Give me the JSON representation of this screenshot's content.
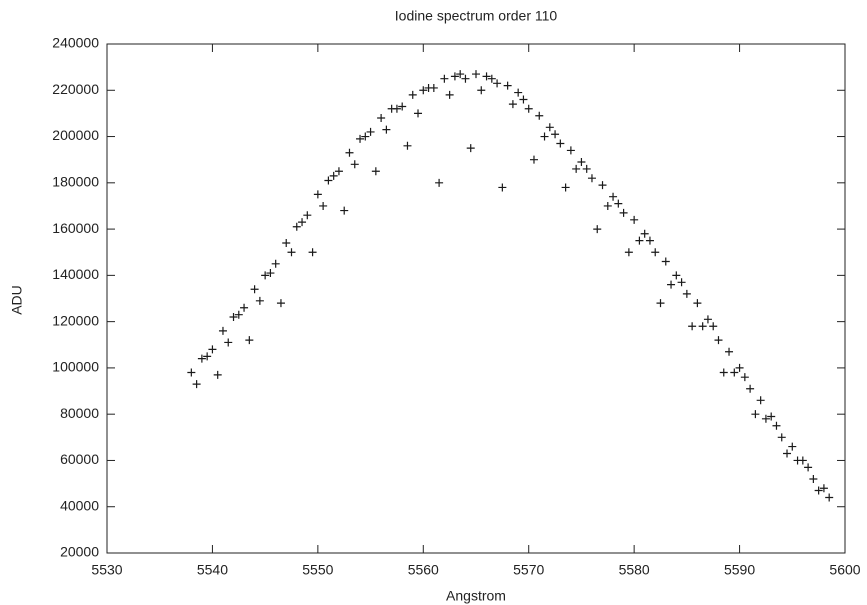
{
  "chart_data": {
    "type": "scatter",
    "title": "Iodine spectrum order 110",
    "x_label": "Angstrom",
    "y_label": "ADU",
    "marker": "+",
    "color": "#1a1a1a",
    "xlim": [
      5530,
      5600
    ],
    "xticks": [
      5530,
      5540,
      5550,
      5560,
      5570,
      5580,
      5590,
      5600
    ],
    "ylim": [
      20000,
      240000
    ],
    "yticks": [
      20000,
      40000,
      60000,
      80000,
      100000,
      120000,
      140000,
      160000,
      180000,
      200000,
      220000,
      240000
    ],
    "x": [
      5538,
      5538.5,
      5539,
      5539.5,
      5540,
      5540.5,
      5541,
      5541.5,
      5542,
      5542.5,
      5543,
      5543.5,
      5544,
      5544.5,
      5545,
      5545.5,
      5546,
      5546.5,
      5547,
      5547.5,
      5548,
      5548.5,
      5549,
      5549.5,
      5550,
      5550.5,
      5551,
      5551.5,
      5552,
      5552.5,
      5553,
      5553.5,
      5554,
      5554.5,
      5555,
      5555.5,
      5556,
      5556.5,
      5557,
      5557.5,
      5558,
      5558.5,
      5559,
      5559.5,
      5560,
      5560.5,
      5561,
      5561.5,
      5562,
      5562.5,
      5563,
      5563.5,
      5564,
      5564.5,
      5565,
      5565.5,
      5566,
      5566.5,
      5567,
      5567.5,
      5568,
      5568.5,
      5569,
      5569.5,
      5570,
      5570.5,
      5571,
      5571.5,
      5572,
      5572.5,
      5573,
      5573.5,
      5574,
      5574.5,
      5575,
      5575.5,
      5576,
      5576.5,
      5577,
      5577.5,
      5578,
      5578.5,
      5579,
      5579.5,
      5580,
      5580.5,
      5581,
      5581.5,
      5582,
      5582.5,
      5583,
      5583.5,
      5584,
      5584.5,
      5585,
      5585.5,
      5586,
      5586.5,
      5587,
      5587.5,
      5588,
      5588.5,
      5589,
      5589.5,
      5590,
      5590.5,
      5591,
      5591.5,
      5592,
      5592.5,
      5593,
      5593.5,
      5594,
      5594.5,
      5595,
      5595.5,
      5596,
      5596.5,
      5597,
      5597.5,
      5598,
      5598.5
    ],
    "values": [
      98000,
      93000,
      104000,
      105000,
      108000,
      97000,
      116000,
      111000,
      122000,
      123000,
      126000,
      112000,
      134000,
      129000,
      140000,
      141000,
      145000,
      128000,
      154000,
      150000,
      161000,
      163000,
      166000,
      150000,
      175000,
      170000,
      181000,
      183000,
      185000,
      168000,
      193000,
      188000,
      199000,
      200000,
      202000,
      185000,
      208000,
      203000,
      212000,
      212000,
      213000,
      196000,
      218000,
      210000,
      220000,
      221000,
      221000,
      180000,
      225000,
      218000,
      226000,
      227000,
      225000,
      195000,
      227000,
      220000,
      226000,
      225000,
      223000,
      178000,
      222000,
      214000,
      219000,
      216000,
      212000,
      190000,
      209000,
      200000,
      204000,
      201000,
      197000,
      178000,
      194000,
      186000,
      189000,
      186000,
      182000,
      160000,
      179000,
      170000,
      174000,
      171000,
      167000,
      150000,
      164000,
      155000,
      158000,
      155000,
      150000,
      128000,
      146000,
      136000,
      140000,
      137000,
      132000,
      118000,
      128000,
      118000,
      121000,
      118000,
      112000,
      98000,
      107000,
      98000,
      100000,
      96000,
      91000,
      80000,
      86000,
      78000,
      79000,
      75000,
      70000,
      63000,
      66000,
      60000,
      60000,
      57000,
      52000,
      47000,
      48000,
      44000
    ]
  }
}
